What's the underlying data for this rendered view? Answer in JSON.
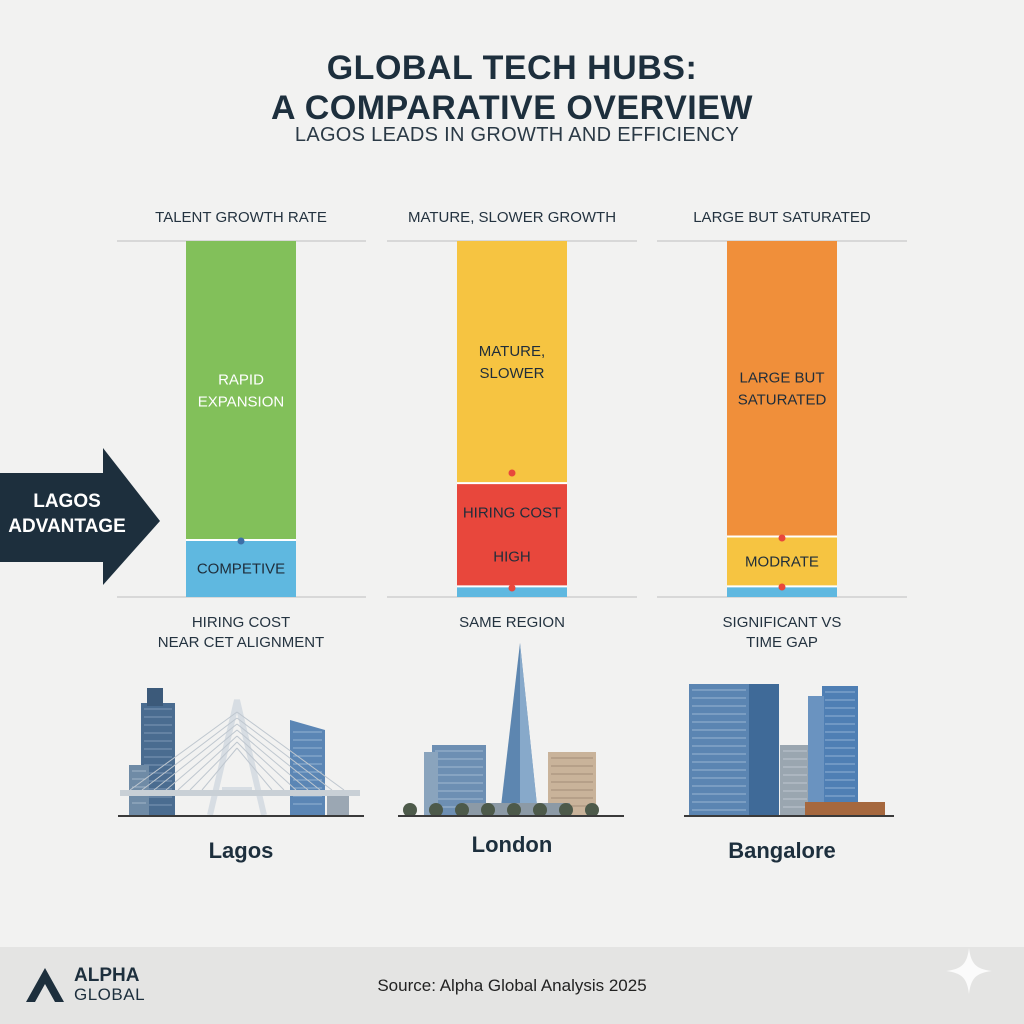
{
  "title_lines": [
    "GLOBAL TECH HUBS:",
    "A COMPARATIVE OVERVIEW"
  ],
  "subtitle": "LAGOS LEADS IN GROWTH AND EFFICIENCY",
  "arrow_label": [
    "LAGOS",
    "ADVANTAGE"
  ],
  "chart_data": {
    "type": "bar",
    "stacked": true,
    "categories": [
      "Lagos",
      "London",
      "Bangalore"
    ],
    "top_labels": [
      "TALENT GROWTH RATE",
      "MATURE, SLOWER GROWTH",
      "LARGE BUT SATURATED"
    ],
    "bottom_labels": [
      [
        "HIRING COST",
        "NEAR CET ALIGNMENT"
      ],
      [
        "SAME REGION"
      ],
      [
        "SIGNIFICANT VS",
        "TIME GAP"
      ]
    ],
    "series_colors": {
      "Lagos": [
        "#5fb8e0",
        "#82c05a"
      ],
      "London": [
        "#5fb8e0",
        "#e8473c",
        "#f6c441"
      ],
      "Bangalore": [
        "#5fb8e0",
        "#f6c441",
        "#f08f3a"
      ]
    },
    "segments": {
      "Lagos": [
        {
          "label": "COMPETIVE",
          "value": 16
        },
        {
          "label": "RAPID EXPANSION",
          "value": 84
        }
      ],
      "London": [
        {
          "label": "",
          "value": 3
        },
        {
          "label": "HIRING COST / HIGH",
          "value": 29
        },
        {
          "label": "MATURE, SLOWER",
          "value": 68
        }
      ],
      "Bangalore": [
        {
          "label": "",
          "value": 3
        },
        {
          "label": "MODRATE",
          "value": 14
        },
        {
          "label": "LARGE BUT SATURATED",
          "value": 83
        }
      ]
    },
    "segment_text": {
      "Lagos": [
        [
          "COMPETIVE"
        ],
        [
          "RAPID",
          "EXPANSION"
        ]
      ],
      "London": [
        [],
        [
          "HIRING COST",
          "",
          "HIGH"
        ],
        [
          "MATURE,",
          "SLOWER"
        ]
      ],
      "Bangalore": [
        [],
        [
          "MODRATE"
        ],
        [
          "LARGE BUT",
          "SATURATED"
        ]
      ]
    },
    "ylim": [
      0,
      100
    ]
  },
  "source": "Source: Alpha Global Analysis 2025",
  "brand": {
    "line1": "ALPHA",
    "line2": "GLOBAL"
  }
}
